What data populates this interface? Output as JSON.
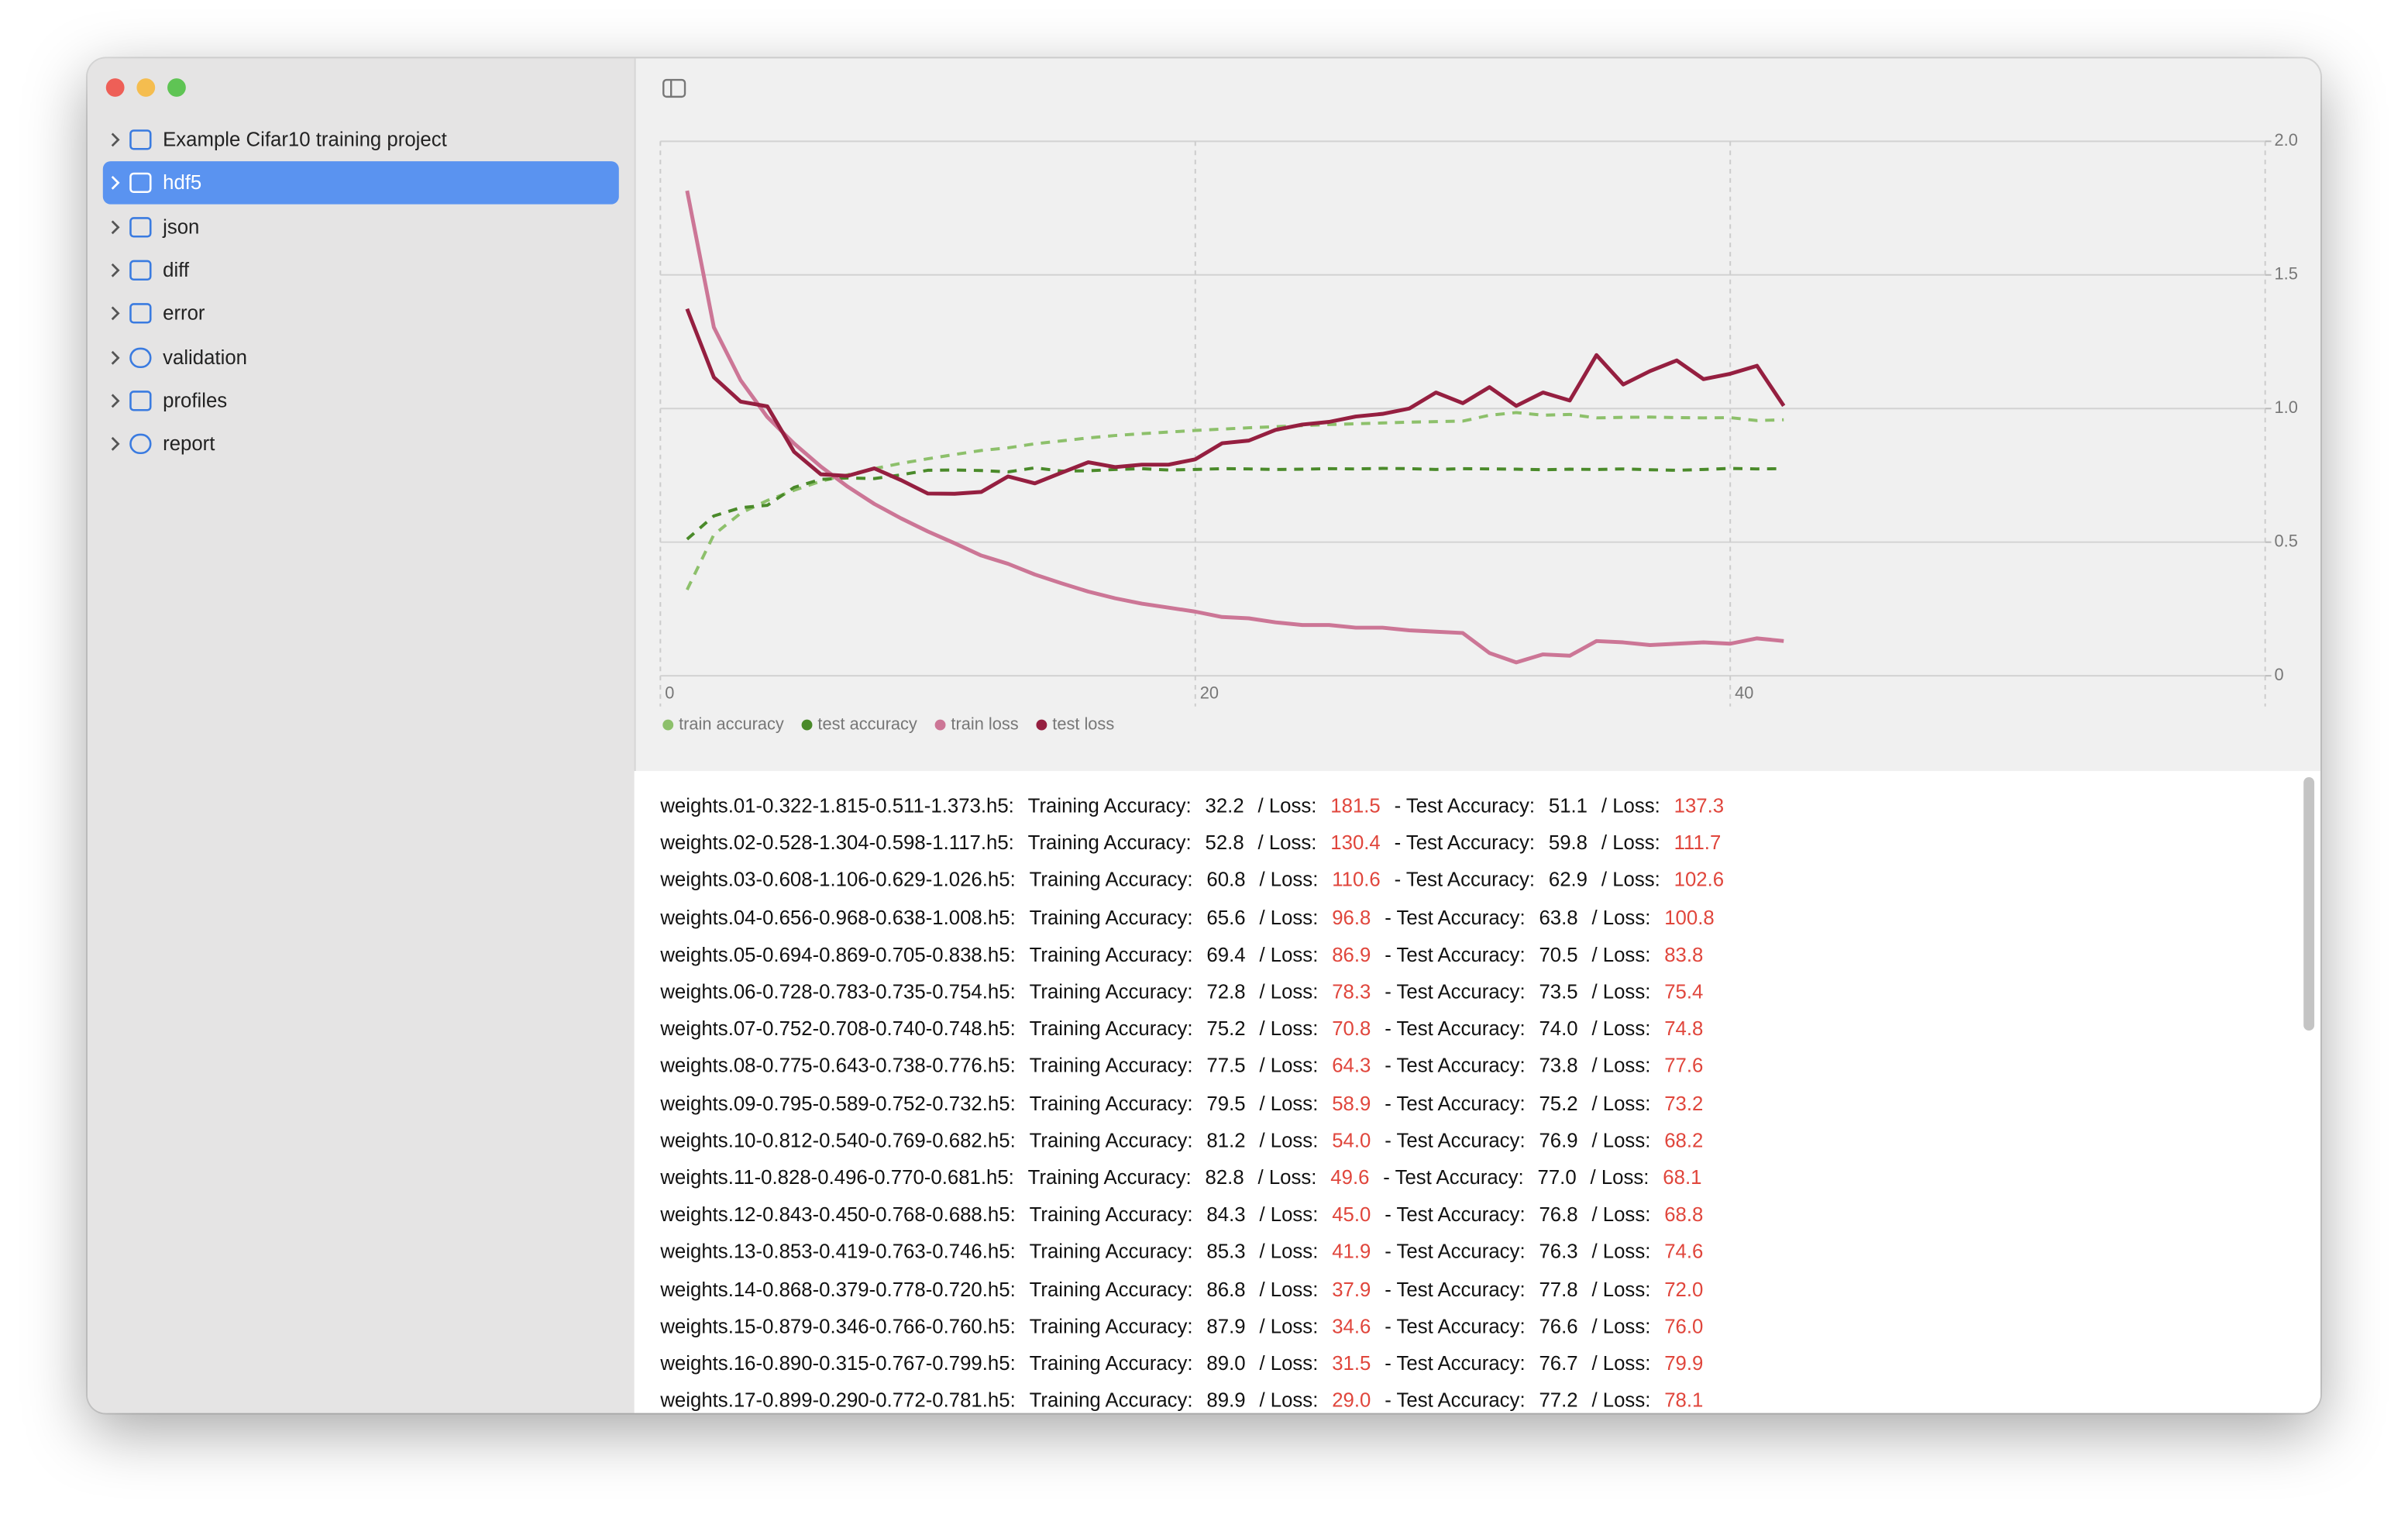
{
  "sidebar": {
    "items": [
      "Example Cifar10 training project",
      "hdf5",
      "json",
      "diff",
      "error",
      "validation",
      "profiles",
      "report"
    ],
    "selected": 1
  },
  "chart_data": {
    "type": "line",
    "x": [
      1,
      2,
      3,
      4,
      5,
      6,
      7,
      8,
      9,
      10,
      11,
      12,
      13,
      14,
      15,
      16,
      17,
      18,
      19,
      20,
      21,
      22,
      23,
      24,
      25,
      26,
      27,
      28,
      29,
      30,
      31,
      32,
      33,
      34,
      35,
      36,
      37,
      38,
      39,
      40,
      41,
      42
    ],
    "xlim": [
      0,
      60
    ],
    "xticks": [
      0,
      20,
      40
    ],
    "ylim": [
      0,
      2
    ],
    "yticks": [
      0,
      0.5,
      {
        "value": 1,
        "label": "1.0"
      },
      1.5,
      {
        "value": 2,
        "label": "2.0"
      }
    ],
    "grid": true,
    "legend": "bottom-left",
    "series": [
      {
        "name": "train accuracy",
        "color": "#8dc06b",
        "dashed": true,
        "values": [
          0.322,
          0.528,
          0.608,
          0.656,
          0.694,
          0.728,
          0.752,
          0.775,
          0.795,
          0.812,
          0.828,
          0.843,
          0.853,
          0.868,
          0.879,
          0.89,
          0.899,
          0.906,
          0.912,
          0.918,
          0.923,
          0.928,
          0.932,
          0.936,
          0.94,
          0.943,
          0.946,
          0.949,
          0.951,
          0.953,
          0.975,
          0.985,
          0.975,
          0.978,
          0.965,
          0.967,
          0.968,
          0.966,
          0.965,
          0.966,
          0.955,
          0.958
        ]
      },
      {
        "name": "test accuracy",
        "color": "#4a8a2a",
        "dashed": true,
        "values": [
          0.511,
          0.598,
          0.629,
          0.638,
          0.705,
          0.735,
          0.74,
          0.738,
          0.752,
          0.769,
          0.77,
          0.768,
          0.763,
          0.778,
          0.766,
          0.767,
          0.772,
          0.775,
          0.77,
          0.772,
          0.775,
          0.774,
          0.772,
          0.773,
          0.775,
          0.774,
          0.776,
          0.775,
          0.772,
          0.775,
          0.774,
          0.773,
          0.771,
          0.773,
          0.772,
          0.774,
          0.771,
          0.769,
          0.772,
          0.776,
          0.774,
          0.775
        ]
      },
      {
        "name": "train loss",
        "color": "#cc7696",
        "dashed": false,
        "values": [
          1.815,
          1.304,
          1.106,
          0.968,
          0.869,
          0.783,
          0.708,
          0.643,
          0.589,
          0.54,
          0.496,
          0.45,
          0.419,
          0.379,
          0.346,
          0.315,
          0.29,
          0.27,
          0.255,
          0.24,
          0.22,
          0.215,
          0.2,
          0.19,
          0.19,
          0.18,
          0.18,
          0.17,
          0.165,
          0.16,
          0.085,
          0.05,
          0.08,
          0.075,
          0.13,
          0.125,
          0.115,
          0.12,
          0.125,
          0.12,
          0.14,
          0.13
        ]
      },
      {
        "name": "test loss",
        "color": "#951f40",
        "dashed": false,
        "values": [
          1.373,
          1.117,
          1.026,
          1.008,
          0.838,
          0.754,
          0.748,
          0.776,
          0.732,
          0.682,
          0.681,
          0.688,
          0.746,
          0.72,
          0.76,
          0.799,
          0.781,
          0.79,
          0.79,
          0.81,
          0.87,
          0.88,
          0.92,
          0.94,
          0.95,
          0.97,
          0.98,
          1.0,
          1.06,
          1.02,
          1.08,
          1.01,
          1.06,
          1.03,
          1.2,
          1.09,
          1.14,
          1.18,
          1.11,
          1.13,
          1.16,
          1.01
        ]
      }
    ]
  },
  "table": {
    "labels": {
      "train_acc": "Training Accuracy:",
      "loss": "/ Loss:",
      "test_acc": "- Test Accuracy:"
    },
    "rows": [
      {
        "file": "weights.01-0.322-1.815-0.511-1.373.h5:",
        "train_acc": "32.2",
        "train_loss": "181.5",
        "test_acc": "51.1",
        "test_loss": "137.3"
      },
      {
        "file": "weights.02-0.528-1.304-0.598-1.117.h5:",
        "train_acc": "52.8",
        "train_loss": "130.4",
        "test_acc": "59.8",
        "test_loss": "111.7"
      },
      {
        "file": "weights.03-0.608-1.106-0.629-1.026.h5:",
        "train_acc": "60.8",
        "train_loss": "110.6",
        "test_acc": "62.9",
        "test_loss": "102.6"
      },
      {
        "file": "weights.04-0.656-0.968-0.638-1.008.h5:",
        "train_acc": "65.6",
        "train_loss": "96.8",
        "test_acc": "63.8",
        "test_loss": "100.8"
      },
      {
        "file": "weights.05-0.694-0.869-0.705-0.838.h5:",
        "train_acc": "69.4",
        "train_loss": "86.9",
        "test_acc": "70.5",
        "test_loss": "83.8"
      },
      {
        "file": "weights.06-0.728-0.783-0.735-0.754.h5:",
        "train_acc": "72.8",
        "train_loss": "78.3",
        "test_acc": "73.5",
        "test_loss": "75.4"
      },
      {
        "file": "weights.07-0.752-0.708-0.740-0.748.h5:",
        "train_acc": "75.2",
        "train_loss": "70.8",
        "test_acc": "74.0",
        "test_loss": "74.8"
      },
      {
        "file": "weights.08-0.775-0.643-0.738-0.776.h5:",
        "train_acc": "77.5",
        "train_loss": "64.3",
        "test_acc": "73.8",
        "test_loss": "77.6"
      },
      {
        "file": "weights.09-0.795-0.589-0.752-0.732.h5:",
        "train_acc": "79.5",
        "train_loss": "58.9",
        "test_acc": "75.2",
        "test_loss": "73.2"
      },
      {
        "file": "weights.10-0.812-0.540-0.769-0.682.h5:",
        "train_acc": "81.2",
        "train_loss": "54.0",
        "test_acc": "76.9",
        "test_loss": "68.2"
      },
      {
        "file": "weights.11-0.828-0.496-0.770-0.681.h5:",
        "train_acc": "82.8",
        "train_loss": "49.6",
        "test_acc": "77.0",
        "test_loss": "68.1"
      },
      {
        "file": "weights.12-0.843-0.450-0.768-0.688.h5:",
        "train_acc": "84.3",
        "train_loss": "45.0",
        "test_acc": "76.8",
        "test_loss": "68.8"
      },
      {
        "file": "weights.13-0.853-0.419-0.763-0.746.h5:",
        "train_acc": "85.3",
        "train_loss": "41.9",
        "test_acc": "76.3",
        "test_loss": "74.6"
      },
      {
        "file": "weights.14-0.868-0.379-0.778-0.720.h5:",
        "train_acc": "86.8",
        "train_loss": "37.9",
        "test_acc": "77.8",
        "test_loss": "72.0"
      },
      {
        "file": "weights.15-0.879-0.346-0.766-0.760.h5:",
        "train_acc": "87.9",
        "train_loss": "34.6",
        "test_acc": "76.6",
        "test_loss": "76.0"
      },
      {
        "file": "weights.16-0.890-0.315-0.767-0.799.h5:",
        "train_acc": "89.0",
        "train_loss": "31.5",
        "test_acc": "76.7",
        "test_loss": "79.9"
      },
      {
        "file": "weights.17-0.899-0.290-0.772-0.781.h5:",
        "train_acc": "89.9",
        "train_loss": "29.0",
        "test_acc": "77.2",
        "test_loss": "78.1"
      }
    ]
  }
}
